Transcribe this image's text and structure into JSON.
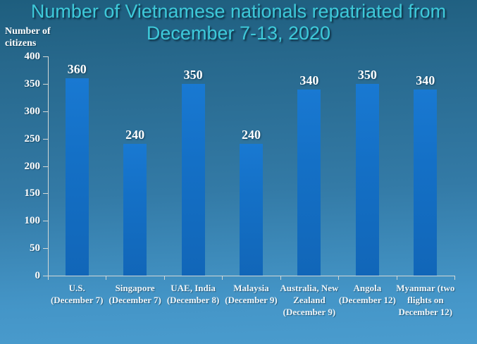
{
  "chart_data": {
    "type": "bar",
    "title": "Number of Vietnamese nationals repatriated from December 7-13, 2020",
    "ylabel": "Number of citizens",
    "xlabel": "",
    "categories": [
      "U.S. (December 7)",
      "Singapore (December 7)",
      "UAE, India (December 8)",
      "Malaysia (December 9)",
      "Australia, New Zealand (December 9)",
      "Angola (December 12)",
      "Myanmar (two flights on December 12)"
    ],
    "values": [
      360,
      240,
      350,
      240,
      340,
      350,
      340
    ],
    "data_labels": [
      "360",
      "240",
      "350",
      "240",
      "340",
      "350",
      "340"
    ],
    "ylim": [
      0,
      400
    ],
    "ytick_step": 50,
    "grid": false,
    "legend": "none",
    "colors": {
      "bar": "#1470c6",
      "title_text": "#3ec9d9",
      "axis_line": "#d3d8d6",
      "label_text": "#ffffff",
      "background_top": "#1e5e7e",
      "background_bottom": "#4a9cce"
    }
  }
}
